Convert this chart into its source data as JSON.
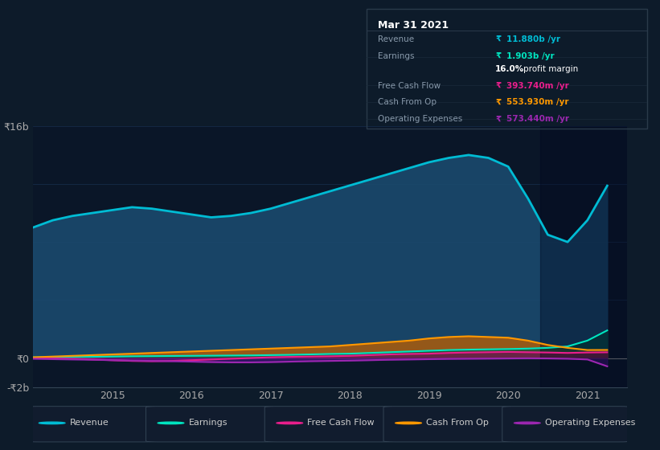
{
  "bg_color": "#0d1b2a",
  "chart_bg": "#0a1628",
  "grid_color": "#1e3a5f",
  "x_years": [
    2014.0,
    2014.25,
    2014.5,
    2014.75,
    2015.0,
    2015.25,
    2015.5,
    2015.75,
    2016.0,
    2016.25,
    2016.5,
    2016.75,
    2017.0,
    2017.25,
    2017.5,
    2017.75,
    2018.0,
    2018.25,
    2018.5,
    2018.75,
    2019.0,
    2019.25,
    2019.5,
    2019.75,
    2020.0,
    2020.25,
    2020.5,
    2020.75,
    2021.0,
    2021.25
  ],
  "revenue": [
    9.0,
    9.5,
    9.8,
    10.0,
    10.2,
    10.4,
    10.3,
    10.1,
    9.9,
    9.7,
    9.8,
    10.0,
    10.3,
    10.7,
    11.1,
    11.5,
    11.9,
    12.3,
    12.7,
    13.1,
    13.5,
    13.8,
    14.0,
    13.8,
    13.2,
    11.0,
    8.5,
    8.0,
    9.5,
    11.88
  ],
  "earnings": [
    0.05,
    0.06,
    0.07,
    0.08,
    0.1,
    0.12,
    0.13,
    0.14,
    0.15,
    0.16,
    0.17,
    0.18,
    0.2,
    0.22,
    0.25,
    0.28,
    0.3,
    0.35,
    0.4,
    0.45,
    0.5,
    0.55,
    0.58,
    0.6,
    0.62,
    0.65,
    0.7,
    0.8,
    1.2,
    1.903
  ],
  "free_cash_flow": [
    0.0,
    -0.02,
    -0.05,
    -0.1,
    -0.15,
    -0.2,
    -0.22,
    -0.2,
    -0.15,
    -0.1,
    -0.05,
    0.0,
    0.05,
    0.08,
    0.1,
    0.12,
    0.15,
    0.2,
    0.25,
    0.28,
    0.3,
    0.35,
    0.38,
    0.4,
    0.42,
    0.4,
    0.38,
    0.35,
    0.38,
    0.394
  ],
  "cash_from_op": [
    0.05,
    0.1,
    0.15,
    0.2,
    0.25,
    0.3,
    0.35,
    0.4,
    0.45,
    0.5,
    0.55,
    0.6,
    0.65,
    0.7,
    0.75,
    0.8,
    0.9,
    1.0,
    1.1,
    1.2,
    1.35,
    1.45,
    1.5,
    1.45,
    1.4,
    1.2,
    0.9,
    0.7,
    0.55,
    0.554
  ],
  "operating_expenses": [
    -0.05,
    -0.08,
    -0.1,
    -0.12,
    -0.15,
    -0.18,
    -0.2,
    -0.22,
    -0.25,
    -0.28,
    -0.3,
    -0.3,
    -0.28,
    -0.25,
    -0.22,
    -0.2,
    -0.18,
    -0.15,
    -0.12,
    -0.1,
    -0.08,
    -0.06,
    -0.05,
    -0.04,
    -0.03,
    -0.02,
    -0.03,
    -0.05,
    -0.1,
    -0.573
  ],
  "ylim": [
    -2.0,
    16.0
  ],
  "xlim": [
    2014.0,
    2021.5
  ],
  "yticks": [
    -2,
    0,
    4,
    8,
    12,
    16
  ],
  "ytick_labels": [
    "-₹2b",
    "₹0",
    "",
    "",
    "",
    "₹16b"
  ],
  "xticks": [
    2015,
    2016,
    2017,
    2018,
    2019,
    2020,
    2021
  ],
  "overlay_x_start": 2020.4,
  "revenue_color": "#00bcd4",
  "revenue_fill": "#1a4a6e",
  "earnings_color": "#00e5c0",
  "earnings_fill": "#004d40",
  "fcf_color": "#e91e8c",
  "fcf_fill": "#880e4f",
  "cashop_color": "#ff9800",
  "cashop_fill": "#bf6000",
  "opex_color": "#9c27b0",
  "opex_fill": "#4a148c",
  "legend_items": [
    {
      "label": "Revenue",
      "color": "#00bcd4"
    },
    {
      "label": "Earnings",
      "color": "#00e5c0"
    },
    {
      "label": "Free Cash Flow",
      "color": "#e91e8c"
    },
    {
      "label": "Cash From Op",
      "color": "#ff9800"
    },
    {
      "label": "Operating Expenses",
      "color": "#9c27b0"
    }
  ],
  "info_header": "Mar 31 2021",
  "info_rows": [
    {
      "label": "Revenue",
      "value": "₹11.880b /yr",
      "color": "#00bcd4"
    },
    {
      "label": "Earnings",
      "value": "₹1.903b /yr",
      "color": "#00e5c0"
    },
    {
      "label": "",
      "value": "16.0% profit margin",
      "color": "#ffffff"
    },
    {
      "label": "Free Cash Flow",
      "value": "₹393.740m /yr",
      "color": "#e91e8c"
    },
    {
      "label": "Cash From Op",
      "value": "₹553.930m /yr",
      "color": "#ff9800"
    },
    {
      "label": "Operating Expenses",
      "value": "₹573.440m /yr",
      "color": "#9c27b0"
    }
  ]
}
